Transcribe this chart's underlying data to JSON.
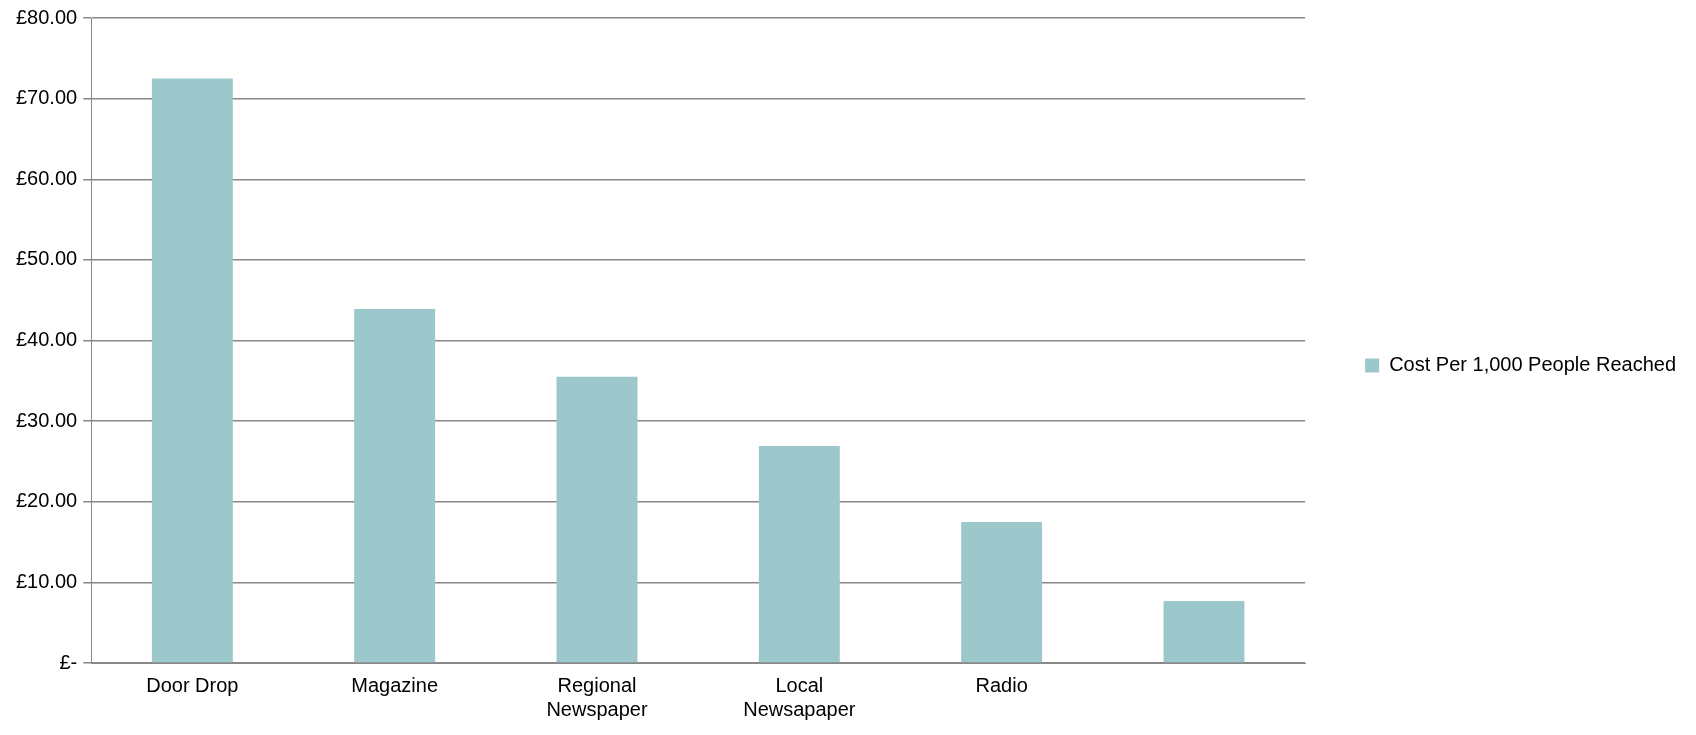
{
  "chart_data": {
    "type": "bar",
    "categories": [
      "Door Drop",
      "Magazine",
      "Regional Newspaper",
      "Local Newsapaper",
      "Radio",
      null
    ],
    "series": [
      {
        "name": "Cost Per 1,000 People Reached",
        "color": "#9cc8cb",
        "values": [
          72.5,
          43.9,
          35.5,
          26.9,
          17.5,
          7.7
        ]
      }
    ],
    "ylim": [
      0,
      80
    ],
    "yticks": [
      {
        "value": 0,
        "label": "£-"
      },
      {
        "value": 10,
        "label": "£10.00"
      },
      {
        "value": 20,
        "label": "£20.00"
      },
      {
        "value": 30,
        "label": "£30.00"
      },
      {
        "value": 40,
        "label": "£40.00"
      },
      {
        "value": 50,
        "label": "£50.00"
      },
      {
        "value": 60,
        "label": "£60.00"
      },
      {
        "value": 70,
        "label": "£70.00"
      },
      {
        "value": 80,
        "label": "£80.00"
      }
    ],
    "grid": "y",
    "legend": "right"
  }
}
